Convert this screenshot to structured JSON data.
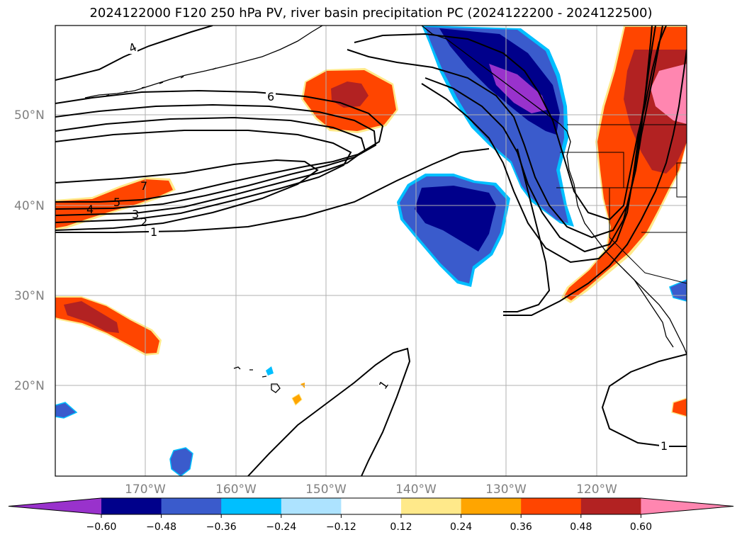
{
  "title": "2024122000 F120 250 hPa PV, river basin precipitation PC (2024122200 - 2024122500)",
  "map": {
    "lat_labels": [
      "50°N",
      "40°N",
      "30°N",
      "20°N"
    ],
    "lon_labels": [
      "170°W",
      "160°W",
      "150°W",
      "140°W",
      "130°W",
      "120°W"
    ],
    "extent": {
      "lon_min": -180,
      "lon_max": -110,
      "lat_min": 10,
      "lat_max": 60
    }
  },
  "contours": {
    "labels": [
      "4",
      "6",
      "7",
      "5",
      "4",
      "3",
      "2",
      "1",
      "1",
      "1"
    ],
    "color": "#000000"
  },
  "colorbar": {
    "ticks": [
      "−0.60",
      "−0.48",
      "−0.36",
      "−0.24",
      "−0.12",
      "0.12",
      "0.24",
      "0.36",
      "0.48",
      "0.60"
    ],
    "colors": [
      "#9932cc",
      "#00008b",
      "#3a5bcc",
      "#00bfff",
      "#ade3ff",
      "#ffffff",
      "#ffe98a",
      "#ffa500",
      "#ff4500",
      "#b22222",
      "#ff86b0"
    ]
  }
}
